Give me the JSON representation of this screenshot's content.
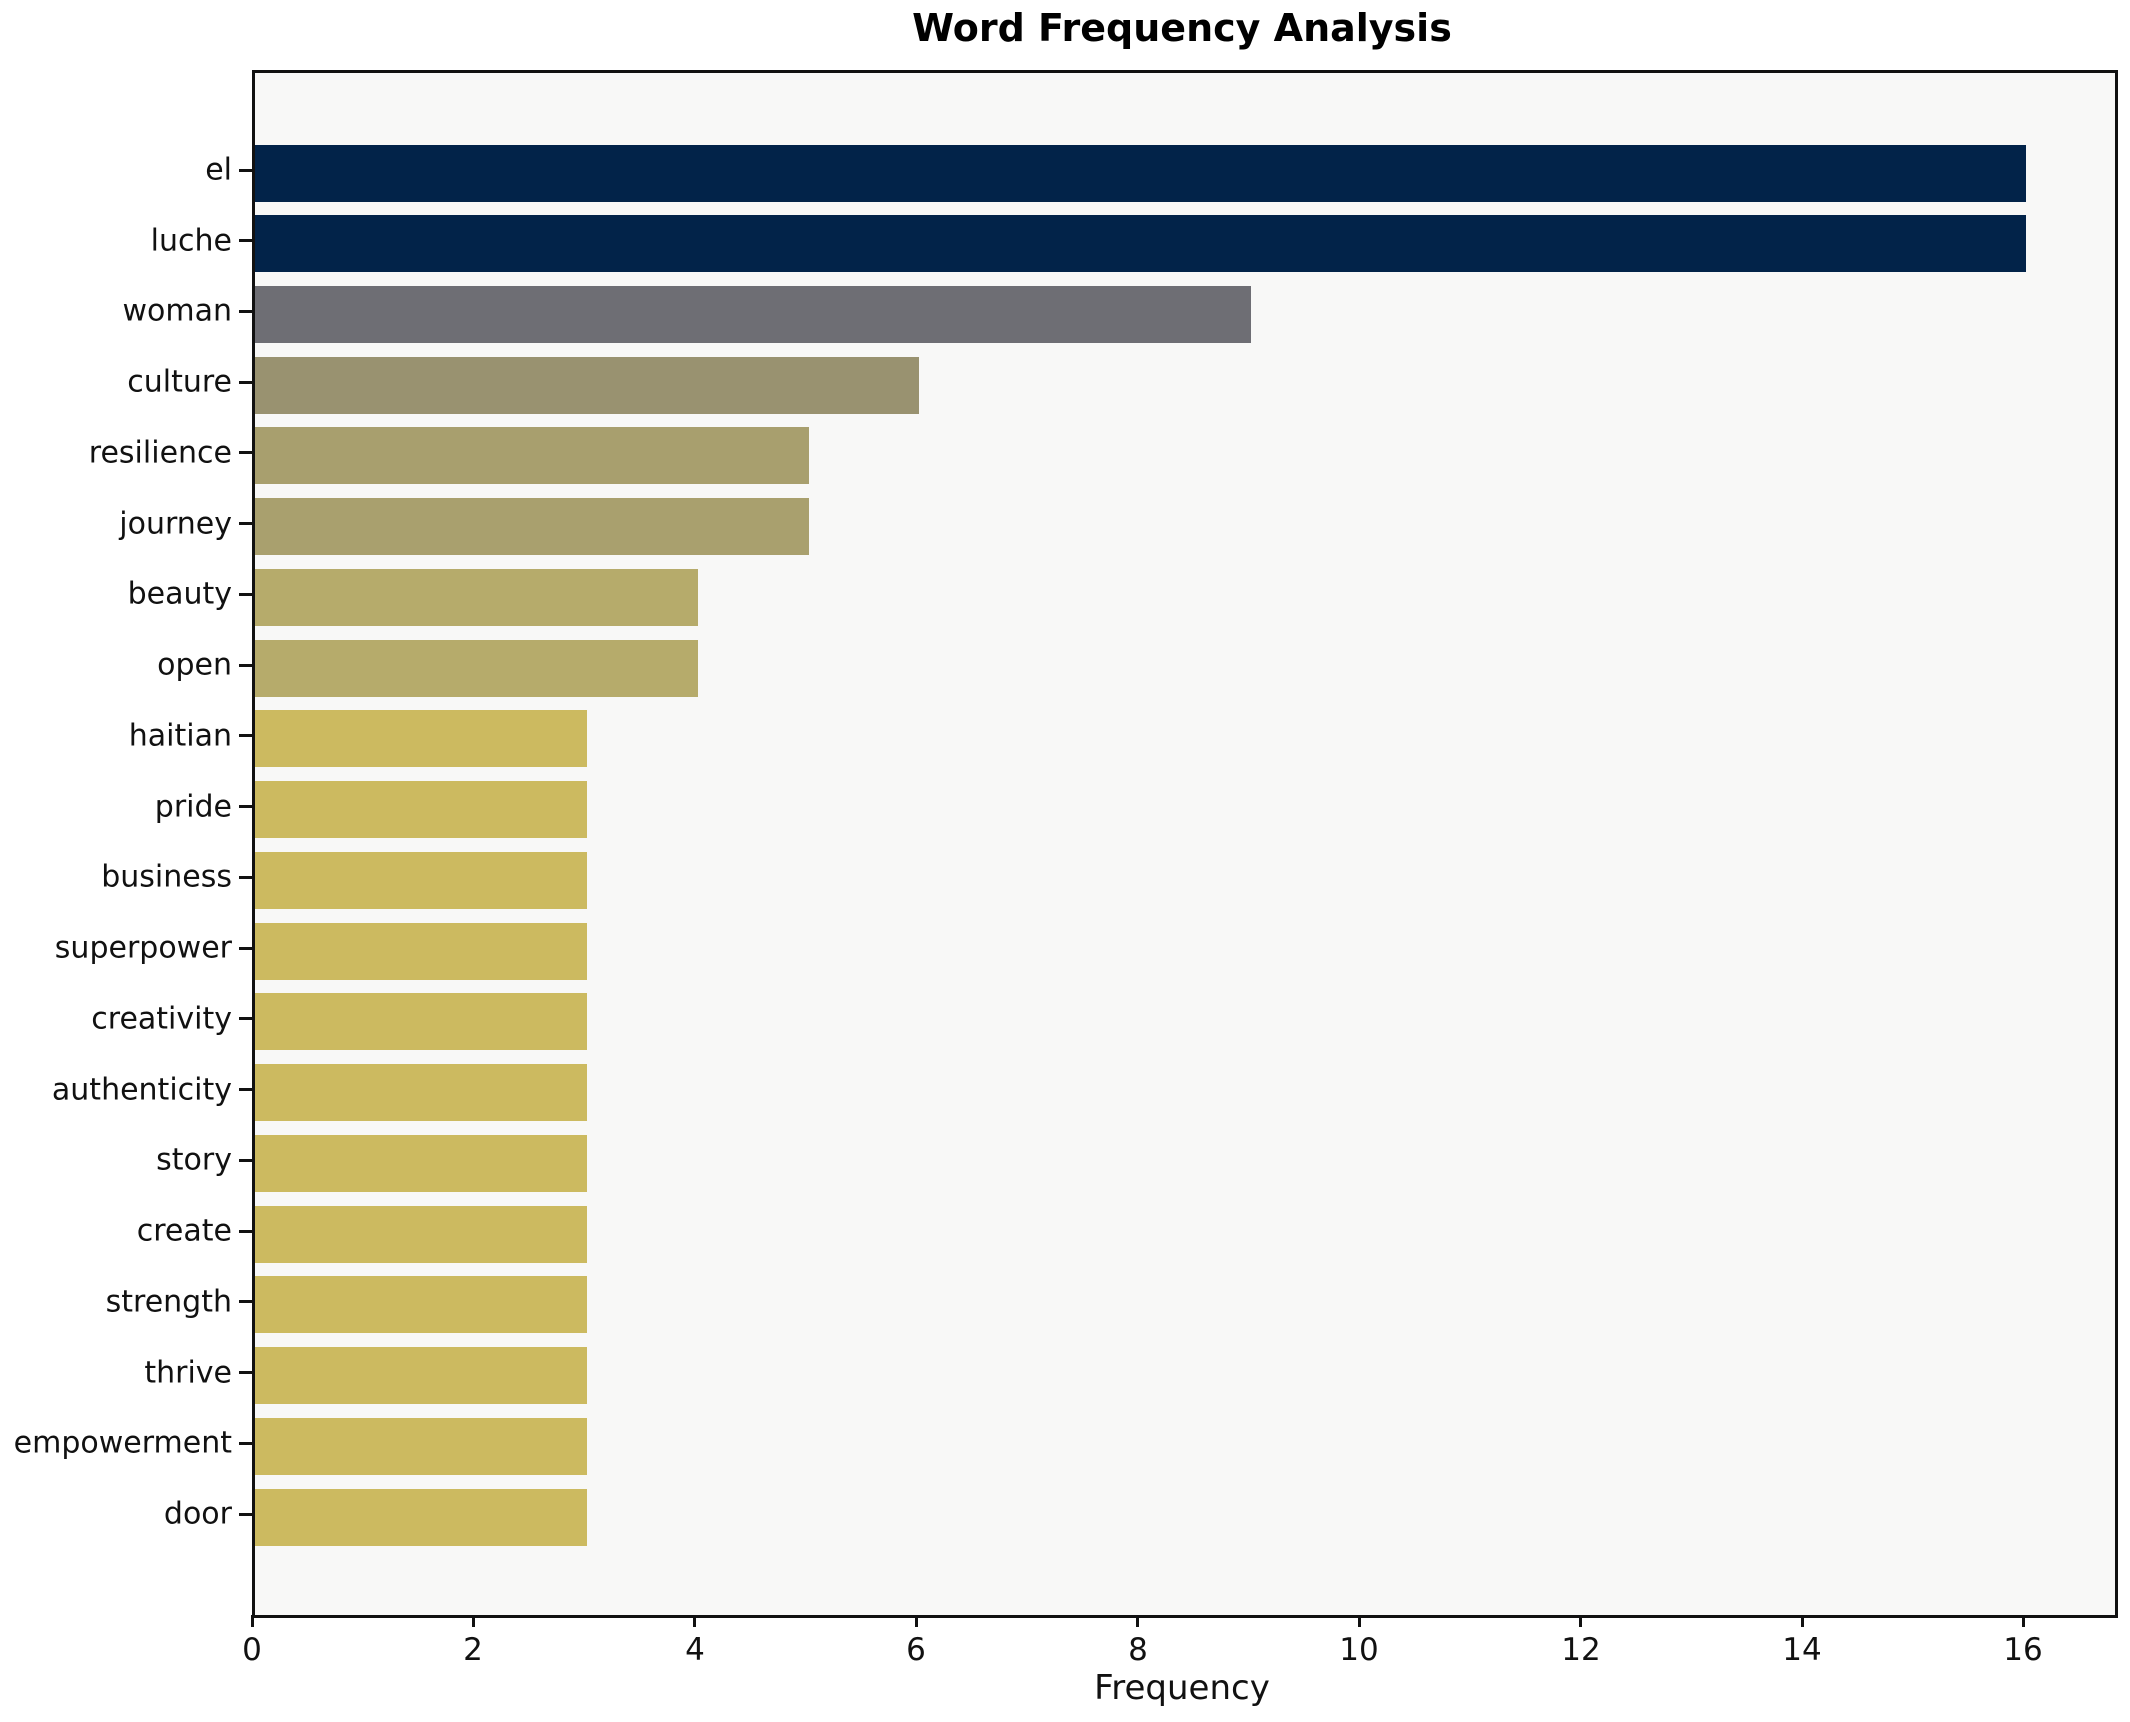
{
  "figure": {
    "background_color": "#ffffff",
    "plot_background_color": "#f8f8f7",
    "axis_color": "#111111"
  },
  "chart_data": {
    "type": "bar",
    "orientation": "horizontal",
    "title": "Word Frequency Analysis",
    "xlabel": "Frequency",
    "ylabel": "",
    "grid": false,
    "legend": null,
    "xlim": [
      0,
      16.8
    ],
    "xticks": [
      0,
      2,
      4,
      6,
      8,
      10,
      12,
      14,
      16
    ],
    "categories": [
      "el",
      "luche",
      "woman",
      "culture",
      "resilience",
      "journey",
      "beauty",
      "open",
      "haitian",
      "pride",
      "business",
      "superpower",
      "creativity",
      "authenticity",
      "story",
      "create",
      "strength",
      "thrive",
      "empowerment",
      "door"
    ],
    "values": [
      16,
      16,
      9,
      6,
      5,
      5,
      4,
      4,
      3,
      3,
      3,
      3,
      3,
      3,
      3,
      3,
      3,
      3,
      3,
      3
    ],
    "bar_colors": [
      "#022349",
      "#022349",
      "#6e6e74",
      "#999270",
      "#a89f6e",
      "#a9a06e",
      "#b6ab6b",
      "#b6ab6b",
      "#ccba60",
      "#ccba60",
      "#ccba60",
      "#ccba60",
      "#ccba60",
      "#ccba60",
      "#ccba60",
      "#ccba60",
      "#ccba60",
      "#ccba60",
      "#ccba60",
      "#ccba60"
    ]
  }
}
